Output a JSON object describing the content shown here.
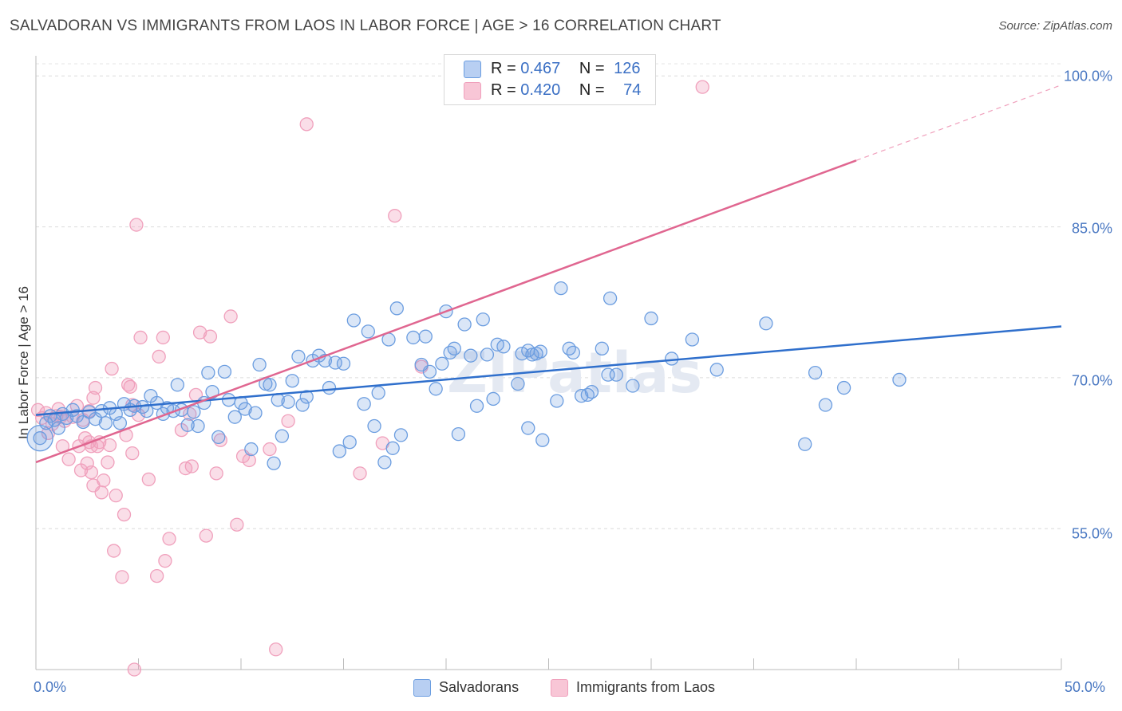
{
  "header": {
    "title": "SALVADORAN VS IMMIGRANTS FROM LAOS IN LABOR FORCE | AGE > 16 CORRELATION CHART",
    "source": "Source: ZipAtlas.com"
  },
  "legend": {
    "rows": [
      {
        "r_label": "R =",
        "r_value": "0.467",
        "n_label": "N =",
        "n_value": "126"
      },
      {
        "r_label": "R =",
        "r_value": "0.420",
        "n_label": "N =",
        "n_value": "74"
      }
    ],
    "bottom": [
      "Salvadorans",
      "Immigrants from Laos"
    ]
  },
  "chart_data": {
    "type": "scatter",
    "title": "SALVADORAN VS IMMIGRANTS FROM LAOS IN LABOR FORCE | AGE > 16 CORRELATION CHART",
    "xlabel": "",
    "ylabel": "In Labor Force | Age > 16",
    "xlim": [
      0,
      50
    ],
    "ylim": [
      41,
      102
    ],
    "x_tick_labels": [
      "0.0%",
      "50.0%"
    ],
    "y_ticks": [
      55,
      70,
      85,
      100
    ],
    "y_tick_labels": [
      "55.0%",
      "70.0%",
      "85.0%",
      "100.0%"
    ],
    "grid": "horizontal dashed",
    "legend_position": "top-center",
    "colors": {
      "salvadorans": "#6b9de0",
      "laos": "#f0a0bc",
      "blue_line": "#2f6fcc",
      "pink_line": "#e06690",
      "tick": "#4a78c2"
    },
    "series": [
      {
        "name": "Salvadorans",
        "r": 0.467,
        "n": 126,
        "trend": {
          "x": [
            0,
            50
          ],
          "y": [
            66.3,
            75.1
          ]
        },
        "points": [
          [
            0.2,
            64.0
          ],
          [
            0.5,
            65.5
          ],
          [
            0.7,
            66.2
          ],
          [
            0.9,
            65.8
          ],
          [
            1.1,
            65.0
          ],
          [
            1.3,
            66.4
          ],
          [
            1.5,
            66.0
          ],
          [
            1.8,
            66.8
          ],
          [
            2.0,
            66.2
          ],
          [
            2.3,
            65.6
          ],
          [
            2.6,
            66.6
          ],
          [
            2.9,
            65.9
          ],
          [
            3.2,
            66.7
          ],
          [
            3.4,
            65.5
          ],
          [
            3.6,
            67.0
          ],
          [
            3.9,
            66.4
          ],
          [
            4.1,
            65.5
          ],
          [
            4.3,
            67.4
          ],
          [
            4.6,
            66.8
          ],
          [
            4.8,
            67.2
          ],
          [
            5.2,
            67.1
          ],
          [
            5.4,
            66.7
          ],
          [
            5.6,
            68.2
          ],
          [
            5.9,
            67.5
          ],
          [
            6.2,
            66.4
          ],
          [
            6.4,
            67.0
          ],
          [
            6.7,
            66.7
          ],
          [
            6.9,
            69.3
          ],
          [
            7.1,
            66.8
          ],
          [
            7.4,
            65.3
          ],
          [
            7.7,
            66.6
          ],
          [
            7.9,
            65.2
          ],
          [
            8.2,
            67.5
          ],
          [
            8.4,
            70.5
          ],
          [
            8.6,
            68.6
          ],
          [
            8.9,
            64.1
          ],
          [
            9.2,
            70.6
          ],
          [
            9.4,
            67.8
          ],
          [
            9.7,
            66.1
          ],
          [
            10.0,
            67.5
          ],
          [
            10.2,
            66.9
          ],
          [
            10.5,
            62.9
          ],
          [
            10.7,
            66.5
          ],
          [
            10.9,
            71.3
          ],
          [
            11.2,
            69.4
          ],
          [
            11.4,
            69.3
          ],
          [
            11.6,
            61.5
          ],
          [
            11.8,
            67.8
          ],
          [
            12.0,
            64.2
          ],
          [
            12.3,
            67.6
          ],
          [
            12.5,
            69.7
          ],
          [
            12.8,
            72.1
          ],
          [
            13.0,
            67.3
          ],
          [
            13.2,
            68.1
          ],
          [
            13.5,
            71.7
          ],
          [
            13.8,
            72.2
          ],
          [
            14.1,
            71.7
          ],
          [
            14.3,
            69.0
          ],
          [
            14.6,
            71.5
          ],
          [
            14.8,
            62.7
          ],
          [
            15.0,
            71.4
          ],
          [
            15.3,
            63.6
          ],
          [
            15.5,
            75.7
          ],
          [
            16.0,
            67.4
          ],
          [
            16.2,
            74.6
          ],
          [
            16.5,
            65.2
          ],
          [
            16.7,
            68.5
          ],
          [
            17.0,
            61.6
          ],
          [
            17.2,
            73.8
          ],
          [
            17.4,
            63.0
          ],
          [
            17.6,
            76.9
          ],
          [
            17.8,
            64.3
          ],
          [
            18.4,
            74.0
          ],
          [
            18.8,
            71.3
          ],
          [
            19.0,
            74.1
          ],
          [
            19.2,
            70.6
          ],
          [
            19.5,
            68.9
          ],
          [
            19.8,
            71.4
          ],
          [
            20.0,
            76.6
          ],
          [
            20.2,
            72.5
          ],
          [
            20.4,
            72.9
          ],
          [
            20.6,
            64.4
          ],
          [
            20.9,
            75.3
          ],
          [
            21.2,
            72.2
          ],
          [
            21.5,
            67.2
          ],
          [
            21.8,
            75.8
          ],
          [
            22.0,
            72.3
          ],
          [
            22.3,
            67.9
          ],
          [
            22.5,
            73.3
          ],
          [
            22.8,
            73.1
          ],
          [
            23.5,
            69.4
          ],
          [
            23.7,
            72.4
          ],
          [
            24.0,
            72.7
          ],
          [
            24.2,
            72.3
          ],
          [
            24.4,
            72.4
          ],
          [
            24.6,
            72.6
          ],
          [
            24.0,
            65.0
          ],
          [
            24.7,
            63.8
          ],
          [
            25.4,
            67.7
          ],
          [
            25.6,
            78.9
          ],
          [
            26.0,
            72.9
          ],
          [
            26.2,
            72.5
          ],
          [
            26.6,
            68.2
          ],
          [
            26.9,
            68.3
          ],
          [
            27.1,
            68.6
          ],
          [
            27.6,
            72.9
          ],
          [
            27.9,
            70.3
          ],
          [
            28.0,
            77.9
          ],
          [
            28.3,
            70.3
          ],
          [
            29.1,
            69.2
          ],
          [
            30.0,
            75.9
          ],
          [
            31.0,
            71.9
          ],
          [
            32.0,
            73.8
          ],
          [
            33.2,
            70.8
          ],
          [
            35.6,
            75.4
          ],
          [
            37.5,
            63.4
          ],
          [
            38.0,
            70.5
          ],
          [
            38.5,
            67.3
          ],
          [
            39.4,
            69.0
          ],
          [
            42.1,
            69.8
          ]
        ]
      },
      {
        "name": "Immigrants from Laos",
        "r": 0.42,
        "n": 74,
        "trend": {
          "x": [
            0,
            40
          ],
          "y": [
            61.6,
            91.6
          ]
        },
        "trend_dashed": {
          "x": [
            40,
            50
          ],
          "y": [
            91.6,
            99.1
          ]
        },
        "points": [
          [
            0.1,
            66.8
          ],
          [
            0.3,
            66.0
          ],
          [
            0.5,
            66.5
          ],
          [
            0.6,
            64.5
          ],
          [
            0.8,
            65.4
          ],
          [
            1.0,
            66.2
          ],
          [
            1.1,
            66.9
          ],
          [
            1.2,
            66.1
          ],
          [
            1.3,
            63.2
          ],
          [
            1.4,
            65.7
          ],
          [
            1.6,
            61.9
          ],
          [
            1.8,
            66.1
          ],
          [
            2.0,
            67.2
          ],
          [
            2.1,
            63.2
          ],
          [
            2.2,
            60.8
          ],
          [
            2.3,
            65.8
          ],
          [
            2.4,
            64.0
          ],
          [
            2.5,
            61.5
          ],
          [
            2.6,
            66.7
          ],
          [
            2.6,
            63.6
          ],
          [
            2.7,
            63.2
          ],
          [
            2.7,
            60.6
          ],
          [
            2.8,
            59.3
          ],
          [
            2.8,
            68.0
          ],
          [
            2.9,
            69.0
          ],
          [
            3.0,
            63.2
          ],
          [
            3.1,
            63.6
          ],
          [
            3.2,
            58.6
          ],
          [
            3.3,
            59.8
          ],
          [
            3.5,
            61.6
          ],
          [
            3.6,
            63.3
          ],
          [
            3.7,
            70.9
          ],
          [
            3.8,
            52.8
          ],
          [
            3.9,
            58.3
          ],
          [
            4.2,
            50.2
          ],
          [
            4.3,
            56.4
          ],
          [
            4.4,
            64.3
          ],
          [
            4.5,
            69.3
          ],
          [
            4.6,
            69.1
          ],
          [
            4.7,
            62.5
          ],
          [
            4.7,
            67.3
          ],
          [
            4.8,
            41.0
          ],
          [
            4.9,
            85.2
          ],
          [
            5.0,
            66.3
          ],
          [
            5.1,
            74.0
          ],
          [
            5.5,
            59.9
          ],
          [
            5.9,
            50.3
          ],
          [
            6.0,
            72.1
          ],
          [
            6.2,
            74.0
          ],
          [
            6.3,
            51.8
          ],
          [
            6.5,
            54.0
          ],
          [
            7.1,
            64.8
          ],
          [
            7.3,
            61.0
          ],
          [
            7.5,
            66.4
          ],
          [
            7.6,
            61.2
          ],
          [
            7.8,
            68.3
          ],
          [
            8.0,
            74.5
          ],
          [
            8.3,
            54.3
          ],
          [
            8.5,
            74.1
          ],
          [
            8.8,
            60.5
          ],
          [
            9.0,
            63.8
          ],
          [
            9.5,
            76.1
          ],
          [
            9.8,
            55.4
          ],
          [
            10.1,
            62.2
          ],
          [
            10.4,
            61.8
          ],
          [
            11.4,
            62.9
          ],
          [
            11.7,
            43.0
          ],
          [
            12.3,
            65.7
          ],
          [
            13.2,
            95.2
          ],
          [
            15.8,
            60.5
          ],
          [
            16.9,
            63.5
          ],
          [
            17.5,
            86.1
          ],
          [
            18.8,
            71.1
          ],
          [
            32.5,
            98.9
          ]
        ]
      }
    ]
  }
}
